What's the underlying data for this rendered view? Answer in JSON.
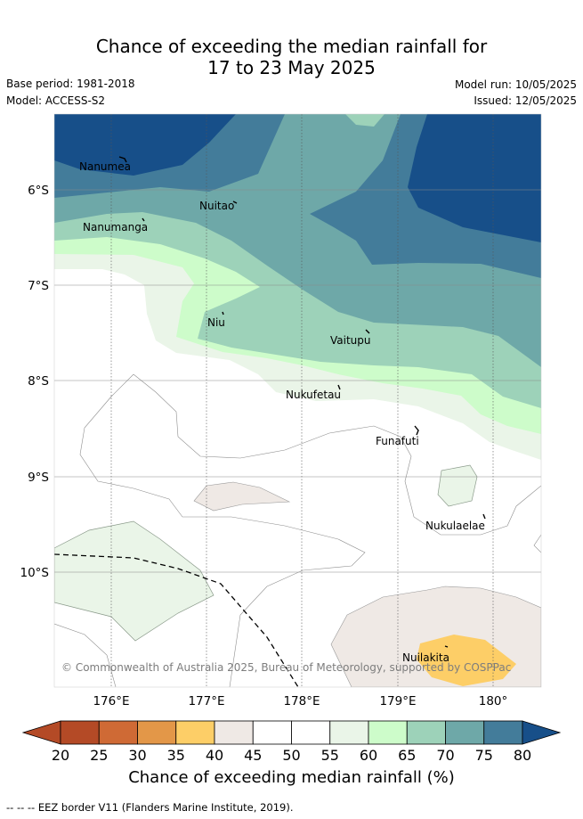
{
  "title": {
    "line1": "Chance of exceeding the median rainfall for",
    "line2": "17 to 23 May 2025"
  },
  "meta": {
    "base_period": "Base period: 1981-2018",
    "model": "Model: ACCESS-S2",
    "model_run": "Model run: 10/05/2025",
    "issued": "Issued: 12/05/2025"
  },
  "map": {
    "longitude_ticks": [
      "176°E",
      "177°E",
      "178°E",
      "179°E",
      "180°"
    ],
    "latitude_ticks": [
      "6°S",
      "7°S",
      "8°S",
      "9°S",
      "10°S"
    ],
    "places": [
      "Nanumea",
      "Nuitao",
      "Nanumanga",
      "Niu",
      "Vaitupu",
      "Nukufetau",
      "Funafuti",
      "Nukulaelae",
      "Nuilakita"
    ],
    "copyright": "© Commonwealth of Australia 2025, Bureau of Meteorology, supported by COSPPac"
  },
  "colorbar": {
    "labels": [
      "20",
      "25",
      "30",
      "35",
      "40",
      "45",
      "50",
      "55",
      "60",
      "65",
      "70",
      "75",
      "80"
    ],
    "colors": [
      "#b44a26",
      "#cf6a35",
      "#e39748",
      "#fdce67",
      "#efe9e5",
      "#ffffff",
      "#ffffff",
      "#eaf5e8",
      "#cdfcca",
      "#9dd2b9",
      "#6ea8a8",
      "#437c9a",
      "#174f89"
    ],
    "title": "Chance of exceeding median rainfall (%)"
  },
  "footnote": "--  --  -- EEZ border V11 (Flanders Marine Institute, 2019)."
}
